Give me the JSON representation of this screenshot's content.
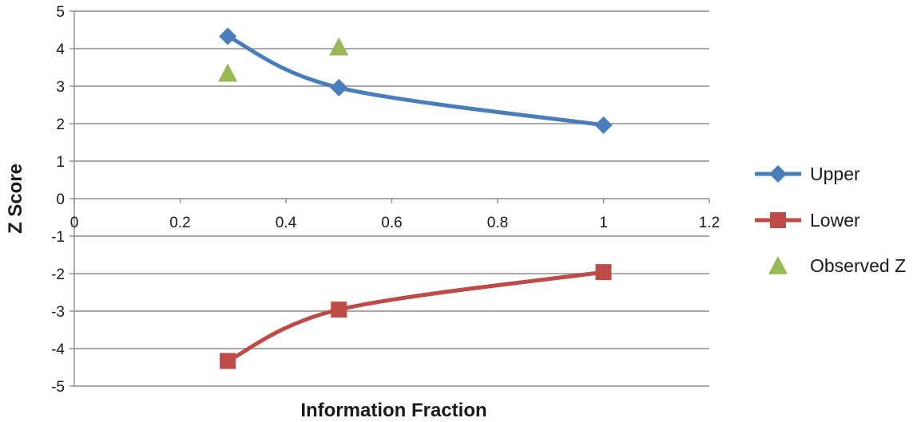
{
  "chart_data": {
    "type": "line",
    "title": "",
    "xlabel": "Information Fraction",
    "ylabel": "Z Score",
    "xlim": [
      0,
      1.2
    ],
    "ylim": [
      -5,
      5
    ],
    "x_ticks": [
      "0",
      "0.2",
      "0.4",
      "0.6",
      "0.8",
      "1",
      "1.2"
    ],
    "y_ticks": [
      "5",
      "4",
      "3",
      "2",
      "1",
      "0",
      "-1",
      "-2",
      "-3",
      "-4",
      "-5"
    ],
    "grid": "horizontal",
    "legend_position": "right",
    "series": [
      {
        "name": "Upper",
        "marker": "diamond",
        "color": "#4a7ebb",
        "smooth": true,
        "points": [
          {
            "x": 0.29,
            "y": 4.33
          },
          {
            "x": 0.5,
            "y": 2.96
          },
          {
            "x": 1.0,
            "y": 1.96
          }
        ]
      },
      {
        "name": "Lower",
        "marker": "square",
        "color": "#be4b48",
        "smooth": true,
        "points": [
          {
            "x": 0.29,
            "y": -4.33
          },
          {
            "x": 0.5,
            "y": -2.96
          },
          {
            "x": 1.0,
            "y": -1.96
          }
        ]
      },
      {
        "name": "Observed Z",
        "marker": "triangle",
        "color": "#98b954",
        "smooth": false,
        "points": [
          {
            "x": 0.29,
            "y": 3.35
          },
          {
            "x": 0.5,
            "y": 4.05
          }
        ]
      }
    ]
  }
}
